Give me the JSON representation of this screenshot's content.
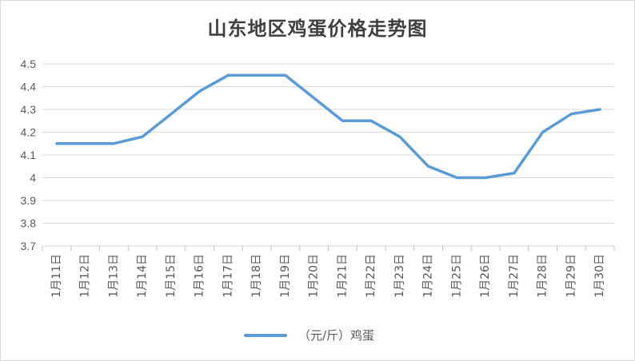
{
  "chart_data": {
    "type": "line",
    "title": "山东地区鸡蛋价格走势图",
    "categories": [
      "1月11日",
      "1月12日",
      "1月13日",
      "1月14日",
      "1月15日",
      "1月16日",
      "1月17日",
      "1月18日",
      "1月19日",
      "1月20日",
      "1月21日",
      "1月22日",
      "1月23日",
      "1月24日",
      "1月25日",
      "1月26日",
      "1月27日",
      "1月28日",
      "1月29日",
      "1月30日"
    ],
    "series": [
      {
        "name": "（元/斤）鸡蛋",
        "color": "#5b9bd5",
        "values": [
          4.15,
          4.15,
          4.15,
          4.18,
          4.28,
          4.38,
          4.45,
          4.45,
          4.45,
          4.35,
          4.25,
          4.25,
          4.18,
          4.05,
          4.0,
          4.0,
          4.02,
          4.2,
          4.28,
          4.3
        ]
      }
    ],
    "ylim": [
      3.7,
      4.5
    ],
    "yticks": [
      "3.7",
      "3.8",
      "3.9",
      "4",
      "4.1",
      "4.2",
      "4.3",
      "4.4",
      "4.5"
    ],
    "grid": true,
    "legend": "bottom"
  }
}
